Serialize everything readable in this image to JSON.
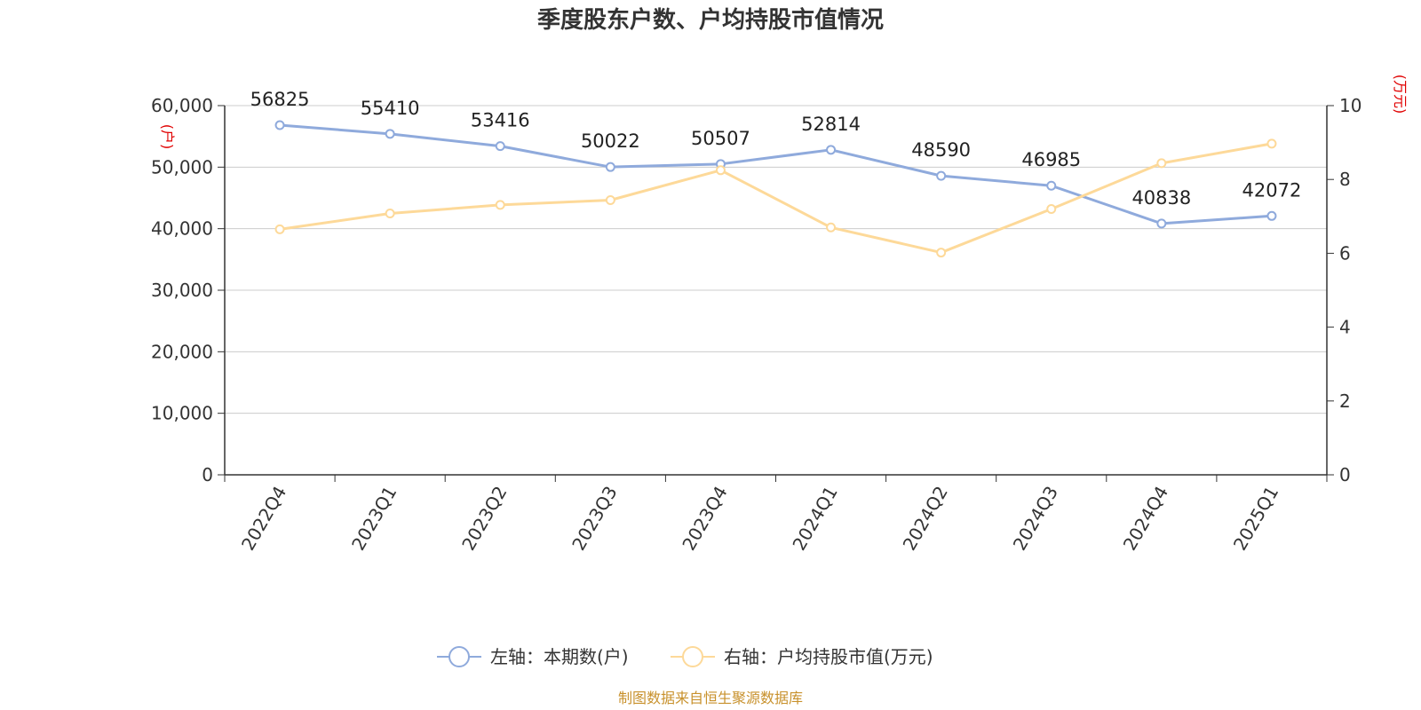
{
  "chart_data": {
    "type": "line",
    "title": "季度股东户数、户均持股市值情况",
    "categories": [
      "2022Q4",
      "2023Q1",
      "2023Q2",
      "2023Q3",
      "2023Q4",
      "2024Q1",
      "2024Q2",
      "2024Q3",
      "2024Q4",
      "2025Q1"
    ],
    "left_axis": {
      "unit": "(户)",
      "range": [
        0,
        60000
      ],
      "ticks": [
        0,
        10000,
        20000,
        30000,
        40000,
        50000,
        60000
      ],
      "tick_labels": [
        "0",
        "10,000",
        "20,000",
        "30,000",
        "40,000",
        "50,000",
        "60,000"
      ]
    },
    "right_axis": {
      "unit": "(万元)",
      "range": [
        0,
        10
      ],
      "ticks": [
        0,
        2,
        4,
        6,
        8,
        10
      ],
      "tick_labels": [
        "0",
        "2",
        "4",
        "6",
        "8",
        "10"
      ]
    },
    "series": [
      {
        "name": "左轴：本期数(户)",
        "axis": "left",
        "color": "#8faadc",
        "values": [
          56825,
          55410,
          53416,
          50022,
          50507,
          52814,
          48590,
          46985,
          40838,
          42072
        ],
        "data_labels": [
          "56825",
          "55410",
          "53416",
          "50022",
          "50507",
          "52814",
          "48590",
          "46985",
          "40838",
          "42072"
        ]
      },
      {
        "name": "右轴：户均持股市值(万元)",
        "axis": "right",
        "color": "#fdd999",
        "values": [
          6.65,
          7.08,
          7.31,
          7.44,
          8.25,
          6.7,
          6.02,
          7.2,
          8.44,
          8.97
        ]
      }
    ],
    "grid": true,
    "legend_position": "bottom-center"
  },
  "footer": {
    "source": "制图数据来自恒生聚源数据库"
  }
}
